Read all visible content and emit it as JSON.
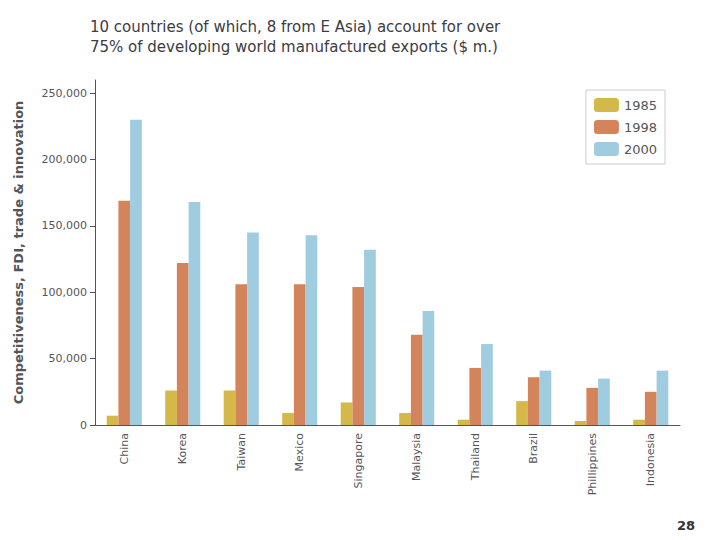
{
  "chart_data": {
    "type": "bar",
    "title": "10 countries (of which, 8 from E Asia) account for over\n75% of developing world manufactured exports ($ m.)",
    "ylabel": "Competitiveness, FDI, trade & innovation",
    "categories": [
      "China",
      "Korea",
      "Taiwan",
      "Mexico",
      "Singapore",
      "Malaysia",
      "Thailand",
      "Brazil",
      "Phillippines",
      "Indonesia"
    ],
    "series": [
      {
        "name": "1985",
        "color": "#d4b84a",
        "values": [
          7000,
          26000,
          26000,
          9000,
          17000,
          9000,
          4000,
          18000,
          3000,
          4000
        ]
      },
      {
        "name": "1998",
        "color": "#d4845a",
        "values": [
          169000,
          122000,
          106000,
          106000,
          104000,
          68000,
          43000,
          36000,
          28000,
          25000
        ]
      },
      {
        "name": "2000",
        "color": "#a0cce0",
        "values": [
          230000,
          168000,
          145000,
          143000,
          132000,
          86000,
          61000,
          41000,
          35000,
          41000
        ]
      }
    ],
    "ylim": [
      0,
      260000
    ],
    "yticks": [
      0,
      {
        "value": 50000,
        "label": "50,000"
      },
      {
        "value": 100000,
        "label": "100,000"
      },
      {
        "value": 150000,
        "label": "150,000"
      },
      {
        "value": 200000,
        "label": "200,000"
      },
      {
        "value": 250000,
        "label": "250,000"
      }
    ],
    "grid": false,
    "legend": "upper right",
    "annotations": [
      {
        "text": "28"
      }
    ]
  }
}
